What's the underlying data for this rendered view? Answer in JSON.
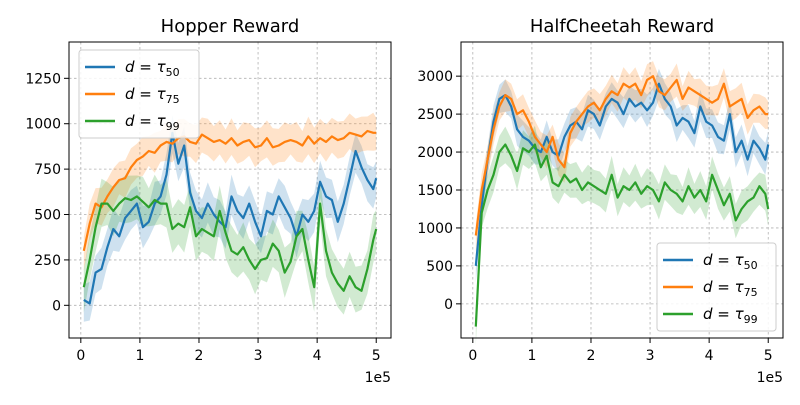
{
  "colors": {
    "tau50": "#1f77b4",
    "tau75": "#ff7f0e",
    "tau99": "#2ca02c"
  },
  "chart_data": [
    {
      "type": "line",
      "title": "Hopper Reward",
      "xlabel": "",
      "ylabel": "",
      "x_scale_label": "1e5",
      "xlim": [
        -0.2,
        5.25
      ],
      "ylim": [
        -180,
        1450
      ],
      "xticks": [
        0,
        1,
        2,
        3,
        4,
        5
      ],
      "yticks": [
        0,
        250,
        500,
        750,
        1000,
        1250
      ],
      "grid": true,
      "legend_position": "top-left",
      "band_spread": [
        120,
        110,
        140
      ],
      "x": [
        0.05,
        0.15,
        0.25,
        0.35,
        0.45,
        0.55,
        0.65,
        0.75,
        0.85,
        0.95,
        1.05,
        1.15,
        1.25,
        1.35,
        1.45,
        1.55,
        1.65,
        1.75,
        1.85,
        1.95,
        2.05,
        2.15,
        2.25,
        2.35,
        2.45,
        2.55,
        2.65,
        2.75,
        2.85,
        2.95,
        3.05,
        3.15,
        3.25,
        3.35,
        3.45,
        3.55,
        3.65,
        3.75,
        3.85,
        3.95,
        4.05,
        4.15,
        4.25,
        4.35,
        4.45,
        4.55,
        4.65,
        4.75,
        4.85,
        4.95,
        5.0
      ],
      "series": [
        {
          "name": "d = τ50",
          "name_main": "d = τ",
          "name_sub": "50",
          "color_key": "tau50",
          "values": [
            30,
            10,
            180,
            200,
            320,
            420,
            380,
            480,
            520,
            560,
            430,
            460,
            560,
            600,
            720,
            950,
            780,
            880,
            620,
            520,
            480,
            560,
            500,
            460,
            430,
            600,
            520,
            480,
            560,
            460,
            380,
            520,
            500,
            600,
            540,
            480,
            380,
            500,
            460,
            520,
            680,
            600,
            580,
            460,
            560,
            700,
            850,
            760,
            690,
            640,
            700
          ]
        },
        {
          "name": "d = τ75",
          "name_main": "d = τ",
          "name_sub": "75",
          "color_key": "tau75",
          "values": [
            300,
            450,
            560,
            540,
            600,
            650,
            690,
            700,
            760,
            800,
            820,
            850,
            840,
            880,
            900,
            890,
            920,
            930,
            900,
            890,
            940,
            920,
            900,
            910,
            890,
            920,
            880,
            900,
            910,
            870,
            880,
            920,
            870,
            880,
            900,
            910,
            900,
            880,
            930,
            890,
            920,
            900,
            930,
            910,
            920,
            950,
            940,
            930,
            960,
            950,
            950
          ]
        },
        {
          "name": "d = τ99",
          "name_main": "d = τ",
          "name_sub": "99",
          "color_key": "tau99",
          "values": [
            100,
            250,
            430,
            560,
            560,
            520,
            560,
            590,
            580,
            600,
            570,
            540,
            580,
            560,
            560,
            420,
            450,
            430,
            540,
            380,
            420,
            400,
            380,
            520,
            400,
            300,
            280,
            320,
            250,
            200,
            250,
            260,
            340,
            300,
            180,
            240,
            380,
            420,
            250,
            100,
            560,
            300,
            180,
            120,
            80,
            160,
            100,
            80,
            200,
            360,
            420
          ]
        }
      ]
    },
    {
      "type": "line",
      "title": "HalfCheetah Reward",
      "xlabel": "",
      "ylabel": "",
      "x_scale_label": "1e5",
      "xlim": [
        -0.2,
        5.25
      ],
      "ylim": [
        -450,
        3450
      ],
      "xticks": [
        0,
        1,
        2,
        3,
        4,
        5
      ],
      "yticks": [
        0,
        500,
        1000,
        1500,
        2000,
        2500,
        3000
      ],
      "grid": true,
      "legend_position": "bottom-right",
      "band_spread": [
        220,
        220,
        250
      ],
      "x": [
        0.05,
        0.15,
        0.25,
        0.35,
        0.45,
        0.55,
        0.65,
        0.75,
        0.85,
        0.95,
        1.05,
        1.15,
        1.25,
        1.35,
        1.45,
        1.55,
        1.65,
        1.75,
        1.85,
        1.95,
        2.05,
        2.15,
        2.25,
        2.35,
        2.45,
        2.55,
        2.65,
        2.75,
        2.85,
        2.95,
        3.05,
        3.15,
        3.25,
        3.35,
        3.45,
        3.55,
        3.65,
        3.75,
        3.85,
        3.95,
        4.05,
        4.15,
        4.25,
        4.35,
        4.45,
        4.55,
        4.65,
        4.75,
        4.85,
        4.95,
        5.0
      ],
      "series": [
        {
          "name": "d = τ50",
          "name_main": "d = τ",
          "name_sub": "50",
          "color_key": "tau50",
          "values": [
            500,
            1300,
            1900,
            2400,
            2700,
            2750,
            2600,
            2300,
            2200,
            2150,
            2050,
            2000,
            2200,
            2000,
            1950,
            2200,
            2350,
            2400,
            2300,
            2550,
            2500,
            2350,
            2600,
            2700,
            2650,
            2500,
            2700,
            2600,
            2650,
            2550,
            2650,
            2900,
            2700,
            2600,
            2350,
            2450,
            2400,
            2250,
            2600,
            2400,
            2350,
            2200,
            2150,
            2500,
            2000,
            2150,
            1900,
            2150,
            2050,
            1900,
            2100
          ]
        },
        {
          "name": "d = τ75",
          "name_main": "d = τ",
          "name_sub": "75",
          "color_key": "tau75",
          "values": [
            900,
            1500,
            1900,
            2300,
            2600,
            2750,
            2700,
            2500,
            2550,
            2400,
            2200,
            2100,
            2000,
            2200,
            1900,
            1800,
            2250,
            2400,
            2500,
            2600,
            2650,
            2550,
            2700,
            2800,
            2750,
            2900,
            2850,
            2900,
            2750,
            2950,
            3000,
            2800,
            2750,
            2850,
            2950,
            2700,
            2850,
            2800,
            2750,
            2700,
            2650,
            2700,
            2900,
            2600,
            2650,
            2700,
            2450,
            2550,
            2600,
            2500,
            2500
          ]
        },
        {
          "name": "d = τ99",
          "name_main": "d = τ",
          "name_sub": "99",
          "color_key": "tau99",
          "values": [
            -300,
            1200,
            1500,
            1700,
            2000,
            2100,
            1950,
            1750,
            2050,
            2000,
            2100,
            1800,
            1950,
            1600,
            1550,
            1700,
            1600,
            1650,
            1500,
            1600,
            1550,
            1500,
            1450,
            1700,
            1400,
            1550,
            1500,
            1600,
            1450,
            1550,
            1500,
            1350,
            1600,
            1500,
            1450,
            1350,
            1550,
            1400,
            1500,
            1350,
            1700,
            1500,
            1300,
            1450,
            1100,
            1250,
            1350,
            1400,
            1550,
            1450,
            1250
          ]
        }
      ]
    }
  ]
}
